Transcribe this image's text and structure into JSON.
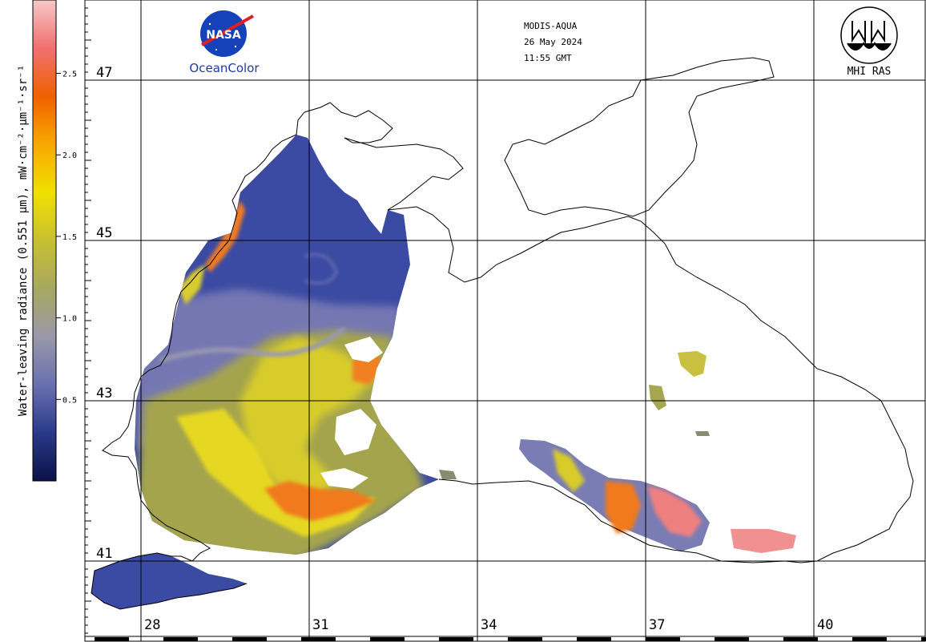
{
  "header": {
    "sensor": "MODIS-AQUA",
    "date": "26 May 2024",
    "time": "11:55 GMT"
  },
  "logos": {
    "nasa_label": "NASA",
    "oceancolor_label": "OceanColor",
    "mhi_label": "MHI RAS"
  },
  "colorbar": {
    "title": "Water-leaving radiance (0.551 µm), mW·cm⁻²·µm⁻¹·sr⁻¹",
    "ticks": [
      "2.5",
      "2.0",
      "1.5",
      "1.0",
      "0.5"
    ],
    "tick_values": [
      2.5,
      2.0,
      1.5,
      1.0,
      0.5
    ],
    "range": [
      0,
      2.95
    ],
    "colors": [
      "#0b1248",
      "#2a3a8a",
      "#6a70b0",
      "#9a98a8",
      "#a8a860",
      "#c8c030",
      "#f0e000",
      "#f8a800",
      "#f06000",
      "#f07070",
      "#f8c8c8"
    ]
  },
  "grid": {
    "latitudes": [
      "47",
      "45",
      "43",
      "41"
    ],
    "longitudes": [
      "28",
      "31",
      "34",
      "37",
      "40"
    ]
  },
  "colors": {
    "water_low": "#3a4aa0",
    "water_mid": "#7f80b8",
    "water_olive": "#a8a850",
    "water_yellow": "#e8d820",
    "water_orange": "#f07820",
    "water_pink": "#f08080",
    "coastline": "#000000"
  }
}
